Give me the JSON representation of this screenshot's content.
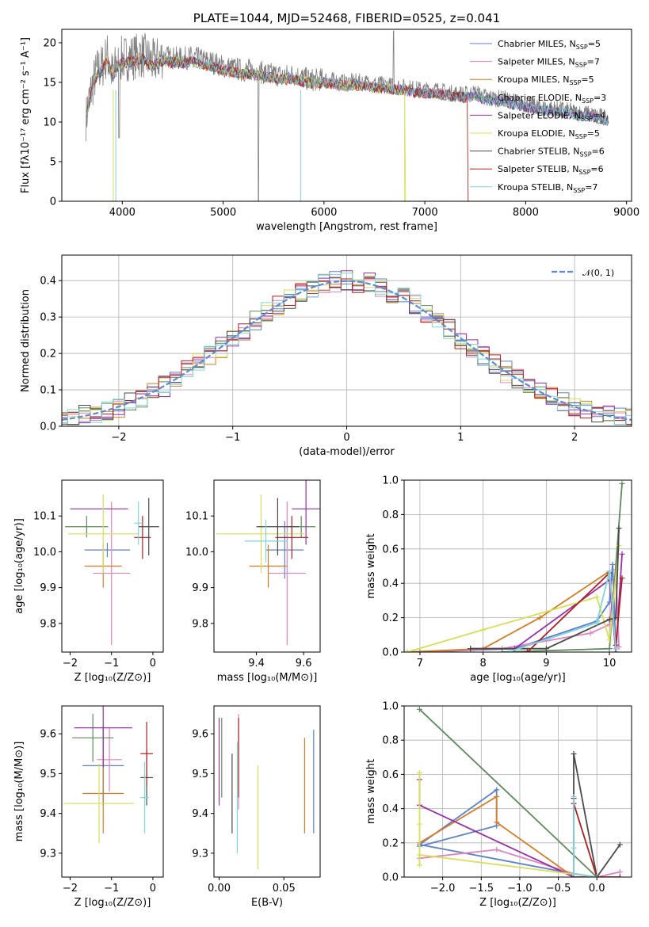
{
  "colors": {
    "Chabrier MILES": "#5b7fd1",
    "Salpeter MILES": "#e382c0",
    "Kroupa MILES": "#d97a24",
    "Chabrier ELODIE": "#5e8a5e",
    "Salpeter ELODIE": "#9a2fae",
    "Kroupa ELODIE": "#d6e052",
    "Chabrier STELIB": "#4a4a4a",
    "Salpeter STELIB": "#b31d1d",
    "Kroupa STELIB": "#7fd6dc",
    "normal": "#5b8ad6",
    "data": "#808080"
  },
  "chart_data": [
    {
      "id": "spectrum",
      "type": "line",
      "title": "PLATE=1044, MJD=52468, FIBERID=0525, z=0.041",
      "xlabel": "wavelength [Angstrom, rest frame]",
      "ylabel": "Flux [fλ10⁻¹⁷ erg cm⁻² s⁻¹ A⁻¹]",
      "xlim": [
        3400,
        9050
      ],
      "ylim": [
        0,
        21.7
      ],
      "xticks": [
        4000,
        5000,
        6000,
        7000,
        8000,
        9000
      ],
      "yticks": [
        0,
        5,
        10,
        15,
        20
      ],
      "data_series": {
        "x": [
          3650,
          3700,
          3750,
          3800,
          3850,
          3900,
          3950,
          4000,
          4100,
          4200,
          4300,
          4400,
          4500,
          4600,
          4700,
          4800,
          4900,
          5000,
          5100,
          5200,
          5300,
          5400,
          5500,
          5600,
          5700,
          5800,
          5900,
          6000,
          6100,
          6200,
          6300,
          6400,
          6500,
          6600,
          6700,
          6800,
          6900,
          7000,
          7100,
          7200,
          7300,
          7400,
          7500,
          7600,
          7700,
          7800,
          7900,
          8000,
          8100,
          8200,
          8300,
          8400,
          8500,
          8600,
          8700,
          8800
        ],
        "y": [
          11.5,
          14.5,
          16.5,
          17,
          18.5,
          16,
          17.5,
          18,
          18.2,
          18.5,
          17.5,
          18.3,
          18.1,
          18,
          18.2,
          17.8,
          17.5,
          17,
          16.8,
          16.5,
          16.6,
          16.2,
          16,
          15.8,
          16,
          15.5,
          15.3,
          15.4,
          15.2,
          15,
          15.1,
          15,
          14.8,
          14.7,
          14.5,
          14.4,
          14.2,
          14,
          14.1,
          13.8,
          13.6,
          13.5,
          13.7,
          13.2,
          13,
          12.9,
          12.5,
          12.3,
          12,
          11.8,
          11.7,
          11.5,
          11.2,
          11.1,
          10.8,
          10.6
        ]
      },
      "series": [
        {
          "name": "Chabrier MILES, N_SSP=5"
        },
        {
          "name": "Salpeter MILES, N_SSP=7"
        },
        {
          "name": "Kroupa MILES, N_SSP=5"
        },
        {
          "name": "Chabrier ELODIE, N_SSP=3"
        },
        {
          "name": "Salpeter ELODIE, N_SSP=4"
        },
        {
          "name": "Kroupa ELODIE, N_SSP=5"
        },
        {
          "name": "Chabrier STELIB, N_SSP=6"
        },
        {
          "name": "Salpeter STELIB, N_SSP=6"
        },
        {
          "name": "Kroupa STELIB, N_SSP=7"
        }
      ],
      "legend": "top-right"
    },
    {
      "id": "residuals",
      "type": "line",
      "xlabel": "(data-model)/error",
      "ylabel": "Normed distribution",
      "xlim": [
        -2.5,
        2.5
      ],
      "ylim": [
        0,
        0.47
      ],
      "xticks": [
        -2,
        -1,
        0,
        1,
        2
      ],
      "yticks": [
        0.0,
        0.1,
        0.2,
        0.3,
        0.4
      ],
      "legend_entry": "𝒩(0, 1)",
      "legend": "top-right",
      "grid": true
    },
    {
      "id": "age_vs_Z",
      "type": "scatter",
      "xlabel": "Z [log₁₀(Z/Z⊙)]",
      "ylabel": "age  [log₁₀(age/yr)]",
      "xlim": [
        -2.2,
        0.25
      ],
      "ylim": [
        9.72,
        10.2
      ],
      "xticks": [
        -2,
        -1,
        0
      ],
      "yticks": [
        9.8,
        9.9,
        10.0,
        10.1
      ],
      "points": [
        {
          "series": "Chabrier MILES",
          "x": -1.1,
          "xerr": 0.55,
          "y": 10.005,
          "yerr": 0.02
        },
        {
          "series": "Salpeter MILES",
          "x": -1.0,
          "xerr": 0.45,
          "y": 9.94,
          "yerr": 0.2
        },
        {
          "series": "Kroupa MILES",
          "x": -1.2,
          "xerr": 0.45,
          "y": 9.96,
          "yerr": 0.06
        },
        {
          "series": "Chabrier ELODIE",
          "x": -1.6,
          "xerr": 0.52,
          "y": 10.07,
          "yerr": 0.03
        },
        {
          "series": "Salpeter ELODIE",
          "x": -1.3,
          "xerr": 0.7,
          "y": 10.12,
          "yerr": 0.0
        },
        {
          "series": "Kroupa ELODIE",
          "x": -1.2,
          "xerr": 0.85,
          "y": 10.05,
          "yerr": 0.11
        },
        {
          "series": "Chabrier STELIB",
          "x": -0.1,
          "xerr": 0.25,
          "y": 10.07,
          "yerr": 0.08
        },
        {
          "series": "Salpeter STELIB",
          "x": -0.25,
          "xerr": 0.2,
          "y": 10.04,
          "yerr": 0.06
        },
        {
          "series": "Kroupa STELIB",
          "x": -0.35,
          "xerr": 0.1,
          "y": 10.08,
          "yerr": 0.06
        }
      ]
    },
    {
      "id": "age_vs_mass",
      "type": "scatter",
      "xlabel": "mass [log₁₀(M/M⊙)]",
      "xlim": [
        9.22,
        9.67
      ],
      "ylim": [
        9.72,
        10.2
      ],
      "xticks": [
        9.4,
        9.6
      ],
      "yticks": [
        9.8,
        9.9,
        10.0,
        10.1
      ],
      "points": [
        {
          "series": "Chabrier MILES",
          "x": 9.52,
          "xerr": 0.08,
          "y": 10.005,
          "yerr": 0.08
        },
        {
          "series": "Salpeter MILES",
          "x": 9.53,
          "xerr": 0.08,
          "y": 9.94,
          "yerr": 0.2
        },
        {
          "series": "Kroupa MILES",
          "x": 9.45,
          "xerr": 0.08,
          "y": 9.96,
          "yerr": 0.06
        },
        {
          "series": "Chabrier ELODIE",
          "x": 9.59,
          "xerr": 0.06,
          "y": 10.07,
          "yerr": 0.03
        },
        {
          "series": "Salpeter ELODIE",
          "x": 9.61,
          "xerr": 0.06,
          "y": 10.12,
          "yerr": 0.1
        },
        {
          "series": "Kroupa ELODIE",
          "x": 9.42,
          "xerr": 0.19,
          "y": 10.05,
          "yerr": 0.11
        },
        {
          "series": "Chabrier STELIB",
          "x": 9.49,
          "xerr": 0.09,
          "y": 10.07,
          "yerr": 0.08
        },
        {
          "series": "Salpeter STELIB",
          "x": 9.55,
          "xerr": 0.07,
          "y": 10.04,
          "yerr": 0.06
        },
        {
          "series": "Kroupa STELIB",
          "x": 9.44,
          "xerr": 0.09,
          "y": 10.03,
          "yerr": 0.06
        }
      ]
    },
    {
      "id": "weight_vs_age",
      "type": "line",
      "xlabel": "age  [log₁₀(age/yr)]",
      "ylabel": "mass weight",
      "xlim": [
        6.75,
        10.35
      ],
      "ylim": [
        0,
        1.0
      ],
      "xticks": [
        7,
        8,
        9,
        10
      ],
      "yticks": [
        0.0,
        0.2,
        0.4,
        0.6,
        0.8,
        1.0
      ],
      "series": [
        {
          "name": "Chabrier MILES",
          "x": [
            7.0,
            8.5,
            9.8,
            10.0,
            10.05,
            10.1
          ],
          "y": [
            0.0,
            0.02,
            0.18,
            0.29,
            0.51,
            0.02
          ]
        },
        {
          "name": "Salpeter MILES",
          "x": [
            6.9,
            8.3,
            9.7,
            10.0,
            10.1,
            10.15
          ],
          "y": [
            0.0,
            0.02,
            0.11,
            0.16,
            0.48,
            0.03
          ]
        },
        {
          "name": "Kroupa MILES",
          "x": [
            6.8,
            8.0,
            8.9,
            10.0,
            10.1
          ],
          "y": [
            0.0,
            0.02,
            0.2,
            0.47,
            0.0
          ]
        },
        {
          "name": "Chabrier ELODIE",
          "x": [
            8.3,
            10.0,
            10.2
          ],
          "y": [
            0.0,
            0.02,
            0.98
          ]
        },
        {
          "name": "Salpeter ELODIE",
          "x": [
            7.8,
            8.5,
            10.0,
            10.1,
            10.2
          ],
          "y": [
            0.02,
            0.02,
            0.42,
            0.0,
            0.57
          ]
        },
        {
          "name": "Kroupa ELODIE",
          "x": [
            6.8,
            8.0,
            9.8,
            10.0,
            10.15
          ],
          "y": [
            0.0,
            0.13,
            0.32,
            0.07,
            0.62
          ]
        },
        {
          "name": "Chabrier STELIB",
          "x": [
            7.8,
            9.0,
            10.0,
            10.1,
            10.15
          ],
          "y": [
            0.02,
            0.02,
            0.19,
            0.2,
            0.72
          ]
        },
        {
          "name": "Salpeter STELIB",
          "x": [
            8.7,
            10.0,
            10.1,
            10.2
          ],
          "y": [
            0.0,
            0.46,
            0.04,
            0.43
          ]
        },
        {
          "name": "Kroupa STELIB",
          "x": [
            8.4,
            9.8,
            10.0,
            10.1
          ],
          "y": [
            0.0,
            0.17,
            0.47,
            0.02
          ]
        }
      ],
      "grid": true
    },
    {
      "id": "mass_vs_Z",
      "type": "scatter",
      "xlabel": "Z [log₁₀(Z/Z⊙)]",
      "ylabel": "mass [log₁₀(M/M⊙)]",
      "xlim": [
        -2.2,
        0.25
      ],
      "ylim": [
        9.24,
        9.67
      ],
      "xticks": [
        -2,
        -1,
        0
      ],
      "yticks": [
        9.3,
        9.4,
        9.5,
        9.6
      ],
      "points": [
        {
          "series": "Chabrier MILES",
          "x": -1.2,
          "xerr": 0.5,
          "y": 9.52,
          "yerr": 0.1
        },
        {
          "series": "Salpeter MILES",
          "x": -1.05,
          "xerr": 0.3,
          "y": 9.535,
          "yerr": 0.08
        },
        {
          "series": "Kroupa MILES",
          "x": -1.2,
          "xerr": 0.5,
          "y": 9.45,
          "yerr": 0.1
        },
        {
          "series": "Chabrier ELODIE",
          "x": -1.45,
          "xerr": 0.5,
          "y": 9.59,
          "yerr": 0.06
        },
        {
          "series": "Salpeter ELODIE",
          "x": -1.2,
          "xerr": 0.7,
          "y": 9.615,
          "yerr": 0.1
        },
        {
          "series": "Kroupa ELODIE",
          "x": -1.3,
          "xerr": 0.85,
          "y": 9.425,
          "yerr": 0.1
        },
        {
          "series": "Chabrier STELIB",
          "x": -0.15,
          "xerr": 0.15,
          "y": 9.49,
          "yerr": 0.07
        },
        {
          "series": "Salpeter STELIB",
          "x": -0.15,
          "xerr": 0.15,
          "y": 9.55,
          "yerr": 0.08
        },
        {
          "series": "Kroupa STELIB",
          "x": -0.2,
          "xerr": 0.1,
          "y": 9.44,
          "yerr": 0.09
        }
      ]
    },
    {
      "id": "mass_vs_ebv",
      "type": "scatter",
      "xlabel": "E(B-V)",
      "xlim": [
        -0.004,
        0.078
      ],
      "ylim": [
        9.24,
        9.67
      ],
      "xticks": [
        0.0,
        0.05
      ],
      "yticks": [
        9.3,
        9.4,
        9.5,
        9.6
      ],
      "points": [
        {
          "series": "Chabrier MILES",
          "x": 0.073,
          "y": 9.48,
          "yerr": 0.13
        },
        {
          "series": "Salpeter MILES",
          "x": 0.015,
          "y": 9.53,
          "yerr": 0.12
        },
        {
          "series": "Kroupa MILES",
          "x": 0.066,
          "y": 9.47,
          "yerr": 0.12
        },
        {
          "series": "Chabrier ELODIE",
          "x": 0.002,
          "y": 9.54,
          "yerr": 0.1
        },
        {
          "series": "Salpeter ELODIE",
          "x": 0.0,
          "y": 9.53,
          "yerr": 0.11
        },
        {
          "series": "Kroupa ELODIE",
          "x": 0.03,
          "y": 9.39,
          "yerr": 0.13
        },
        {
          "series": "Chabrier STELIB",
          "x": 0.01,
          "y": 9.45,
          "yerr": 0.1
        },
        {
          "series": "Salpeter STELIB",
          "x": 0.015,
          "y": 9.54,
          "yerr": 0.1
        },
        {
          "series": "Kroupa STELIB",
          "x": 0.014,
          "y": 9.44,
          "yerr": 0.14
        }
      ]
    },
    {
      "id": "weight_vs_Z",
      "type": "line",
      "xlabel": "Z [log₁₀(Z/Z⊙)]",
      "ylabel": "mass weight",
      "xlim": [
        -2.5,
        0.45
      ],
      "ylim": [
        0,
        1.0
      ],
      "xticks": [
        -2.0,
        -1.5,
        -1.0,
        -0.5,
        0.0
      ],
      "yticks": [
        0.0,
        0.2,
        0.4,
        0.6,
        0.8,
        1.0
      ],
      "series": [
        {
          "name": "Chabrier MILES",
          "x": [
            -2.3,
            -1.3,
            -1.3,
            -2.3,
            -0.3,
            0.0
          ],
          "y": [
            0.18,
            0.3,
            0.51,
            0.19,
            0.02,
            0.0
          ]
        },
        {
          "name": "Salpeter MILES",
          "x": [
            -2.3,
            -1.3,
            -0.3,
            0.0,
            0.3
          ],
          "y": [
            0.11,
            0.16,
            0.02,
            0.0,
            0.03
          ]
        },
        {
          "name": "Kroupa MILES",
          "x": [
            -2.3,
            -1.3,
            -1.3,
            -0.3,
            0.0
          ],
          "y": [
            0.2,
            0.47,
            0.32,
            0.0,
            0.0
          ]
        },
        {
          "name": "Chabrier ELODIE",
          "x": [
            -2.3,
            0.0
          ],
          "y": [
            0.98,
            0.0
          ]
        },
        {
          "name": "Salpeter ELODIE",
          "x": [
            -2.3,
            -2.3,
            -0.3,
            0.0
          ],
          "y": [
            0.57,
            0.42,
            0.0,
            0.0
          ]
        },
        {
          "name": "Kroupa ELODIE",
          "x": [
            -2.3,
            -2.3,
            -2.3,
            -2.3,
            0.0
          ],
          "y": [
            0.61,
            0.31,
            0.07,
            0.13,
            0.0
          ]
        },
        {
          "name": "Chabrier STELIB",
          "x": [
            -0.3,
            -0.3,
            0.0,
            0.3,
            0.0
          ],
          "y": [
            0.02,
            0.72,
            0.0,
            0.19,
            0.0
          ]
        },
        {
          "name": "Salpeter STELIB",
          "x": [
            -0.3,
            -0.3,
            0.0,
            0.3
          ],
          "y": [
            0.46,
            0.43,
            0.0,
            0.0
          ]
        },
        {
          "name": "Kroupa STELIB",
          "x": [
            -0.3,
            -0.3,
            -0.3,
            0.0
          ],
          "y": [
            0.47,
            0.17,
            0.02,
            0.0
          ]
        }
      ],
      "grid": true
    }
  ]
}
